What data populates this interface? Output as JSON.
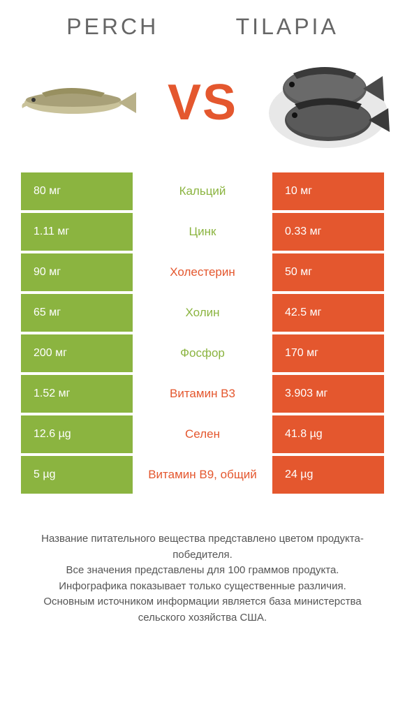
{
  "header": {
    "left_title": "Perch",
    "right_title": "Tilapia"
  },
  "vs_label": "VS",
  "colors": {
    "left": "#8bb440",
    "right": "#e4572e",
    "text": "#666666",
    "footnote": "#555555",
    "background": "#ffffff"
  },
  "rows": [
    {
      "left": "80 мг",
      "label": "Кальций",
      "right": "10 мг",
      "winner": "left"
    },
    {
      "left": "1.11 мг",
      "label": "Цинк",
      "right": "0.33 мг",
      "winner": "left"
    },
    {
      "left": "90 мг",
      "label": "Холестерин",
      "right": "50 мг",
      "winner": "right"
    },
    {
      "left": "65 мг",
      "label": "Холин",
      "right": "42.5 мг",
      "winner": "left"
    },
    {
      "left": "200 мг",
      "label": "Фосфор",
      "right": "170 мг",
      "winner": "left"
    },
    {
      "left": "1.52 мг",
      "label": "Витамин B3",
      "right": "3.903 мг",
      "winner": "right"
    },
    {
      "left": "12.6 µg",
      "label": "Селен",
      "right": "41.8 µg",
      "winner": "right"
    },
    {
      "left": "5 µg",
      "label": "Витамин B9, общий",
      "right": "24 µg",
      "winner": "right"
    }
  ],
  "footnote": {
    "line1": "Название питательного вещества представлено цветом продукта-победителя.",
    "line2": "Все значения представлены для 100 граммов продукта.",
    "line3": "Инфографика показывает только существенные различия.",
    "line4": "Основным источником информации является база министерства сельского хозяйства США."
  }
}
